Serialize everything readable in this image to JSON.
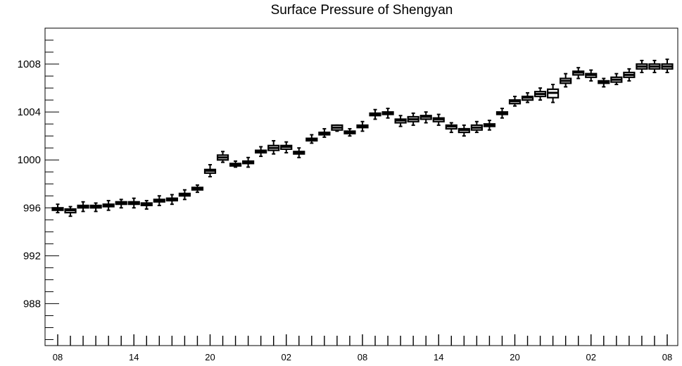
{
  "chart_data": {
    "type": "boxplot",
    "title": "Surface Pressure of Shengyan",
    "xlabel": "",
    "ylabel": "",
    "ylim": [
      984.5,
      1011
    ],
    "grid": false,
    "yticks": [
      988,
      992,
      996,
      1000,
      1004,
      1008
    ],
    "xtick_labels": [
      "08",
      "14",
      "20",
      "02",
      "08",
      "14",
      "20",
      "02",
      "08"
    ],
    "x_hours": [
      0,
      3,
      6,
      9,
      12,
      15,
      18,
      21,
      24,
      27,
      30,
      33,
      36,
      39,
      42,
      45,
      48,
      51,
      54,
      57,
      60,
      63,
      66,
      69,
      72,
      75,
      78,
      81,
      84,
      87,
      90,
      93,
      96,
      99,
      102,
      105,
      108,
      111,
      114,
      117,
      120,
      123,
      126,
      129,
      132,
      135,
      138,
      141,
      144
    ],
    "series": [
      {
        "median": [
          995.9,
          995.8,
          996.1,
          996.1,
          996.2,
          996.4,
          996.4,
          996.3,
          996.6,
          996.7,
          997.1,
          997.6,
          999.1,
          1000.2,
          999.6,
          999.8,
          1000.7,
          1001.0,
          1001.1,
          1000.6,
          1001.7,
          1002.2,
          1002.7,
          1002.3,
          1002.8,
          1003.8,
          1003.9,
          1003.3,
          1003.4,
          1003.6,
          1003.4,
          1002.8,
          1002.5,
          1002.7,
          1002.9,
          1003.9,
          1004.9,
          1005.2,
          1005.5,
          1005.6,
          1006.6,
          1007.3,
          1007.1,
          1006.5,
          1006.7,
          1007.1,
          1007.8,
          1007.8,
          1007.8
        ],
        "q1": [
          995.8,
          995.6,
          996.0,
          996.0,
          996.1,
          996.3,
          996.3,
          996.2,
          996.5,
          996.6,
          997.0,
          997.5,
          998.9,
          1000.0,
          999.5,
          999.7,
          1000.6,
          1000.8,
          1000.9,
          1000.5,
          1001.6,
          1002.1,
          1002.5,
          1002.2,
          1002.7,
          1003.7,
          1003.8,
          1003.1,
          1003.2,
          1003.4,
          1003.2,
          1002.6,
          1002.3,
          1002.5,
          1002.8,
          1003.8,
          1004.7,
          1005.0,
          1005.3,
          1005.2,
          1006.4,
          1007.1,
          1006.9,
          1006.4,
          1006.5,
          1006.9,
          1007.6,
          1007.6,
          1007.6
        ],
        "q3": [
          996.0,
          995.9,
          996.2,
          996.2,
          996.3,
          996.5,
          996.5,
          996.4,
          996.7,
          996.8,
          997.2,
          997.7,
          999.2,
          1000.4,
          999.7,
          999.9,
          1000.8,
          1001.2,
          1001.2,
          1000.7,
          1001.8,
          1002.3,
          1002.9,
          1002.4,
          1002.9,
          1003.9,
          1004.0,
          1003.4,
          1003.6,
          1003.7,
          1003.5,
          1002.9,
          1002.6,
          1002.9,
          1003.0,
          1004.0,
          1005.0,
          1005.3,
          1005.7,
          1005.9,
          1006.8,
          1007.4,
          1007.2,
          1006.6,
          1006.9,
          1007.3,
          1008.0,
          1008.0,
          1008.0
        ],
        "min": [
          995.6,
          995.3,
          995.7,
          995.7,
          995.8,
          996.0,
          996.0,
          995.9,
          996.2,
          996.3,
          996.7,
          997.3,
          998.6,
          999.8,
          999.4,
          999.4,
          1000.3,
          1000.5,
          1000.6,
          1000.2,
          1001.4,
          1001.9,
          1002.4,
          1002.0,
          1002.4,
          1003.4,
          1003.5,
          1002.8,
          1002.9,
          1003.1,
          1002.9,
          1002.3,
          1002.0,
          1002.3,
          1002.5,
          1003.5,
          1004.5,
          1004.8,
          1005.0,
          1004.8,
          1006.1,
          1006.8,
          1006.6,
          1006.1,
          1006.3,
          1006.6,
          1007.3,
          1007.3,
          1007.3
        ],
        "max": [
          996.3,
          996.1,
          996.5,
          996.4,
          996.6,
          996.7,
          996.8,
          996.6,
          997.0,
          997.1,
          997.5,
          997.9,
          999.6,
          1000.7,
          999.9,
          1000.2,
          1001.1,
          1001.6,
          1001.5,
          1001.0,
          1002.1,
          1002.6,
          1002.9,
          1002.6,
          1003.2,
          1004.2,
          1004.3,
          1003.7,
          1003.9,
          1004.0,
          1003.8,
          1003.1,
          1002.9,
          1003.2,
          1003.3,
          1004.3,
          1005.3,
          1005.6,
          1006.0,
          1006.3,
          1007.2,
          1007.7,
          1007.5,
          1006.8,
          1007.2,
          1007.6,
          1008.3,
          1008.3,
          1008.4
        ]
      }
    ]
  }
}
